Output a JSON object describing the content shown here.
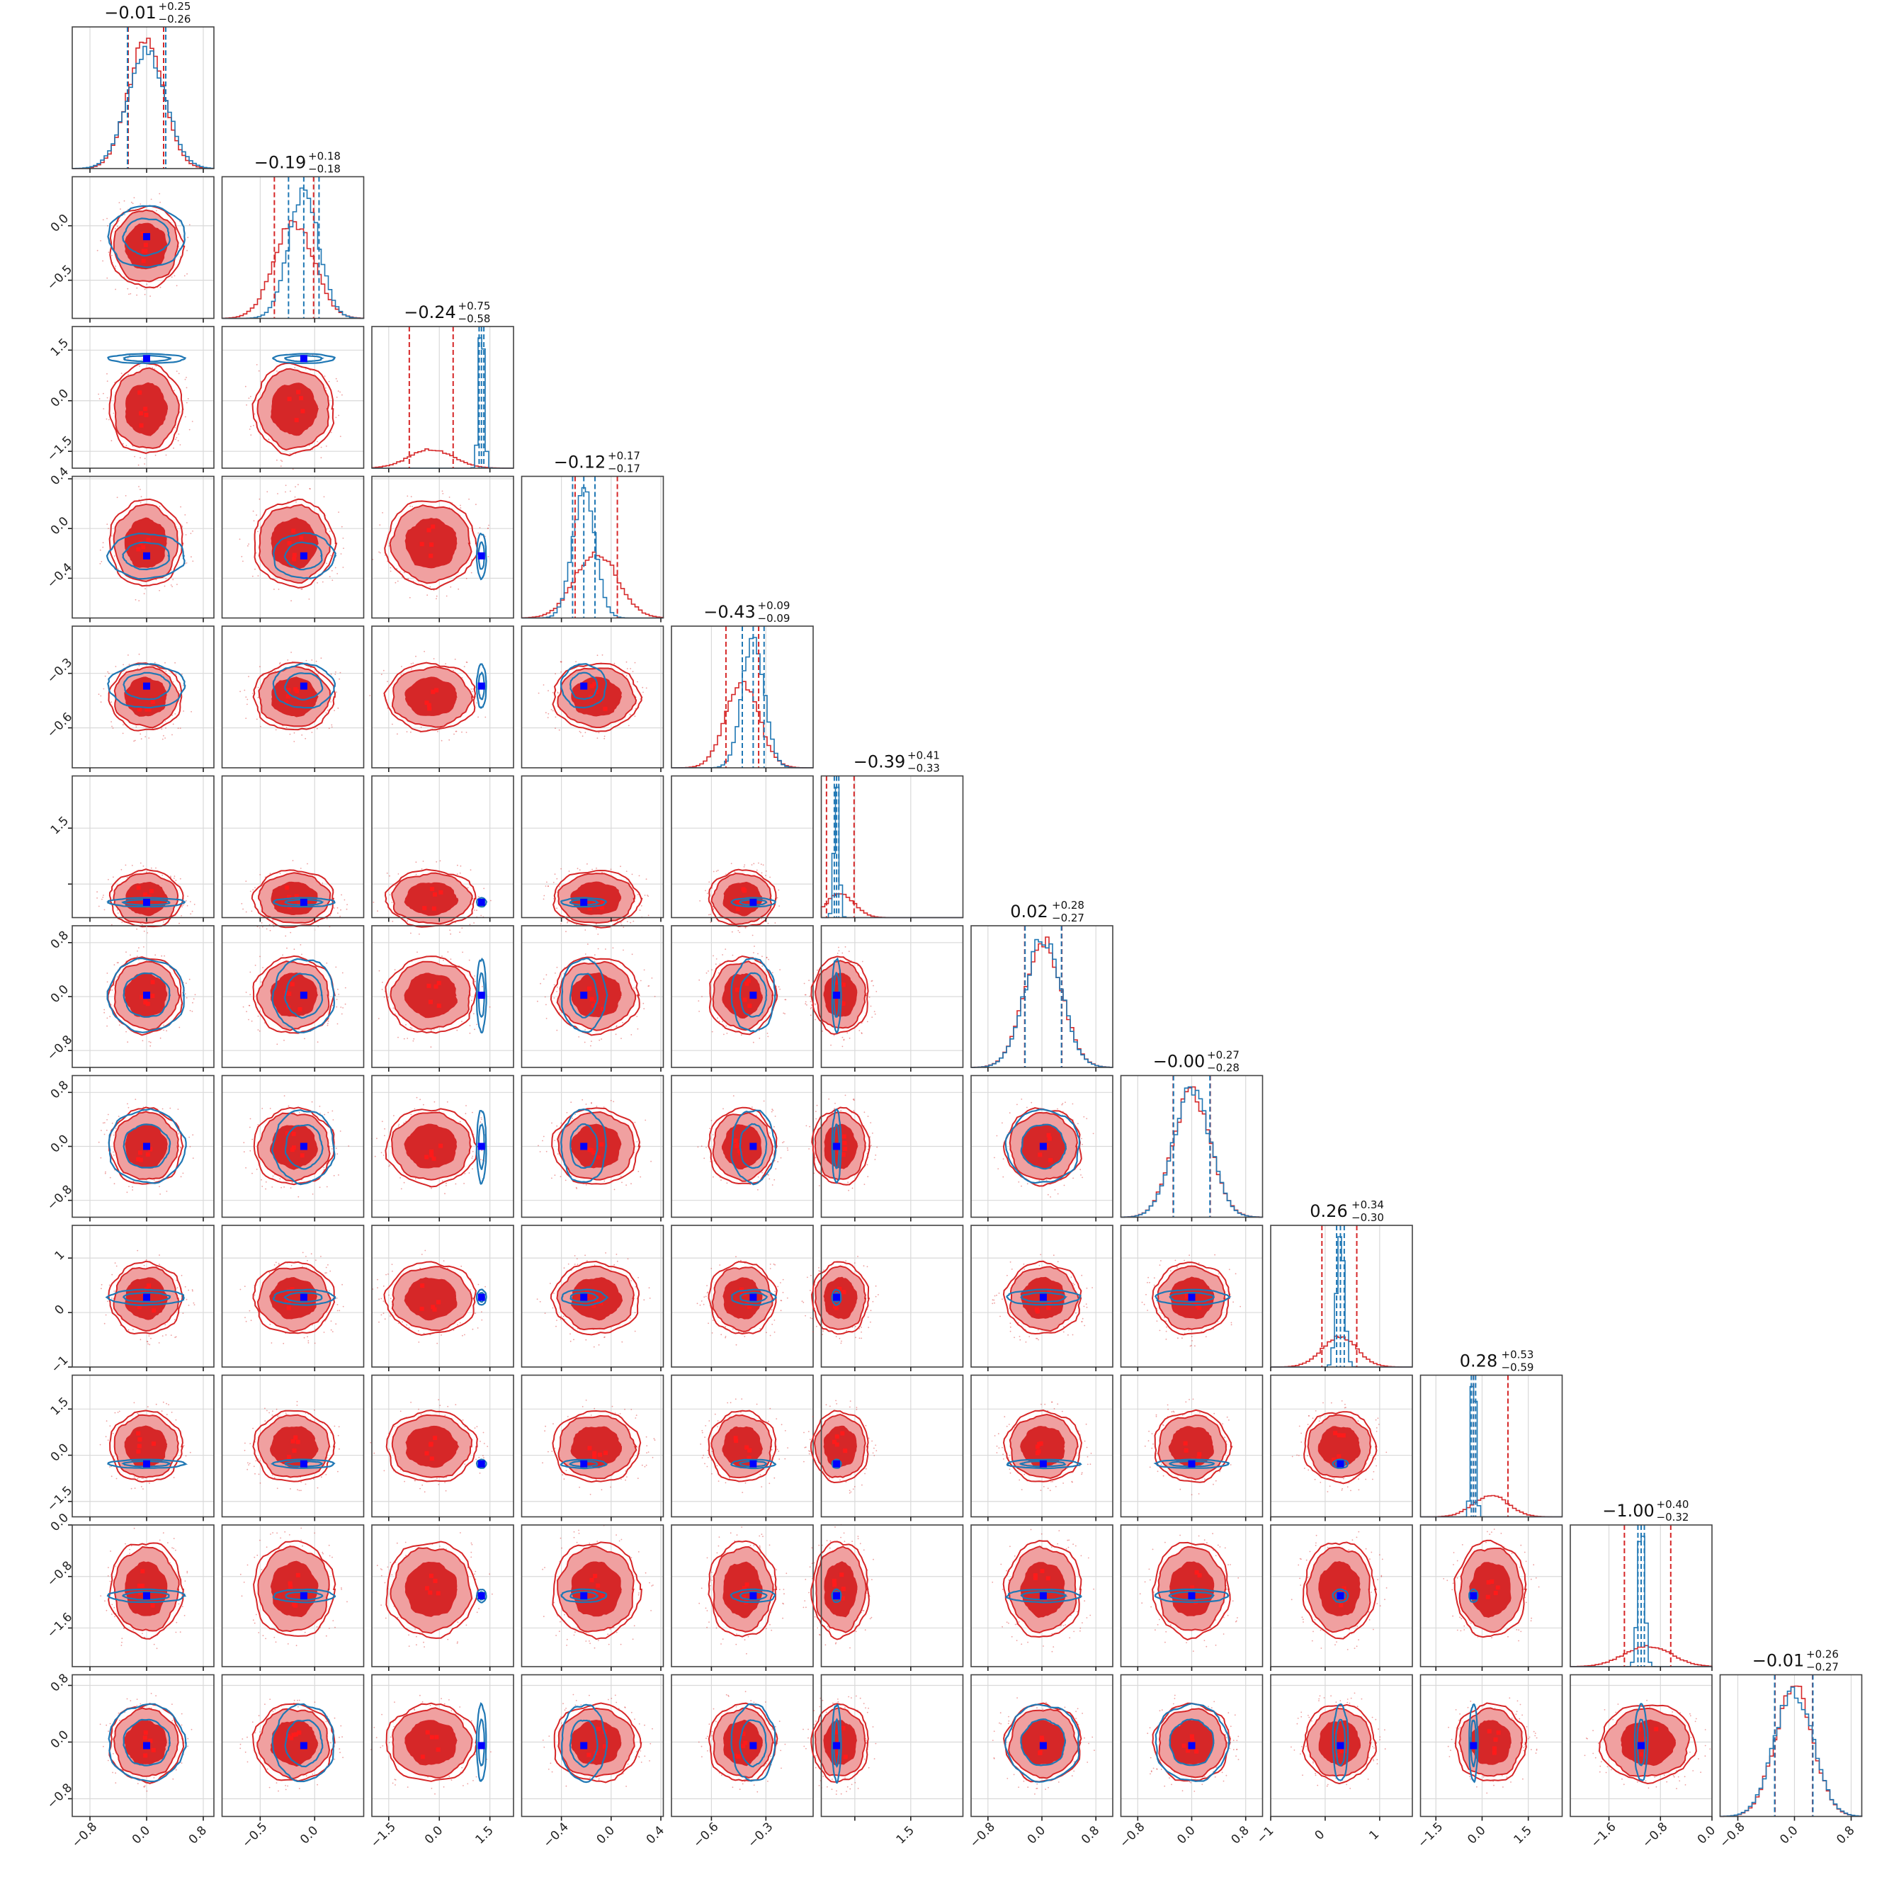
{
  "chart_data": {
    "type": "corner",
    "n_params": 12,
    "colors": {
      "series_a": "#d62728",
      "series_a_fill": "#f0a0a0",
      "series_a_core": "#d62728",
      "series_b": "#1f77b4",
      "truth": "#0000ff"
    },
    "series": [
      {
        "color": "#d62728",
        "role": "broad posterior"
      },
      {
        "color": "#1f77b4",
        "role": "narrow posterior"
      }
    ],
    "params": [
      {
        "ticks": [
          -0.8,
          0.0,
          0.8
        ],
        "tick_labels": [
          "−0.8",
          "0.0",
          "0.8"
        ],
        "range": [
          -1.05,
          0.95
        ],
        "title_main": "−0.01",
        "title_sup": "+0.25",
        "title_sub": "−0.26",
        "a": {
          "mu": -0.01,
          "sd": 0.25
        },
        "b": {
          "mu": 0.0,
          "sd": 0.27
        },
        "truth": 0.0,
        "red_mark": 0.0
      },
      {
        "ticks": [
          -0.5,
          0.0
        ],
        "tick_labels": [
          "−0.5",
          "0.0"
        ],
        "range": [
          -0.85,
          0.45
        ],
        "title_main": "−0.19",
        "title_sup": "+0.18",
        "title_sub": "−0.18",
        "a": {
          "mu": -0.19,
          "sd": 0.18
        },
        "b": {
          "mu": -0.1,
          "sd": 0.14
        },
        "truth": -0.1,
        "red_mark": -0.1
      },
      {
        "ticks": [
          -1.5,
          0.0,
          1.5
        ],
        "tick_labels": [
          "−1.5",
          "0.0",
          "1.5"
        ],
        "range": [
          -2.0,
          2.2
        ],
        "title_main": "−0.24",
        "title_sup": "+0.75",
        "title_sub": "−0.58",
        "a": {
          "mu": -0.24,
          "sd": 0.65
        },
        "b": {
          "mu": 1.25,
          "sd": 0.07
        },
        "truth": 1.25,
        "red_mark": 0.5
      },
      {
        "ticks": [
          -0.4,
          0.0,
          0.4
        ],
        "tick_labels": [
          "−0.4",
          "0.0",
          "0.4"
        ],
        "range": [
          -0.72,
          0.42
        ],
        "title_main": "−0.12",
        "title_sup": "+0.17",
        "title_sub": "−0.17",
        "a": {
          "mu": -0.12,
          "sd": 0.17
        },
        "b": {
          "mu": -0.22,
          "sd": 0.09
        },
        "truth": -0.22,
        "red_mark": -0.1
      },
      {
        "ticks": [
          -0.6,
          -0.3
        ],
        "tick_labels": [
          "−0.6",
          "−0.3"
        ],
        "range": [
          -0.82,
          -0.04
        ],
        "title_main": "−0.43",
        "title_sup": "+0.09",
        "title_sub": "−0.09",
        "a": {
          "mu": -0.43,
          "sd": 0.09
        },
        "b": {
          "mu": -0.37,
          "sd": 0.06
        },
        "truth": -0.37,
        "red_mark": -0.37
      },
      {
        "ticks": [
          -0.0,
          1.5
        ],
        "tick_labels": [
          "",
          "1.5"
        ],
        "range": [
          -0.9,
          2.9
        ],
        "title_main": "−0.39",
        "title_sup": "+0.41",
        "title_sub": "−0.33",
        "a": {
          "mu": -0.39,
          "sd": 0.37
        },
        "b": {
          "mu": -0.49,
          "sd": 0.06
        },
        "truth": -0.49,
        "red_mark": 0.5
      },
      {
        "ticks": [
          -0.8,
          0.0,
          0.8
        ],
        "tick_labels": [
          "−0.8",
          "0.0",
          "0.8"
        ],
        "range": [
          -1.05,
          1.05
        ],
        "title_main": "0.02",
        "title_sup": "+0.28",
        "title_sub": "−0.27",
        "a": {
          "mu": 0.02,
          "sd": 0.275
        },
        "b": {
          "mu": 0.02,
          "sd": 0.27
        },
        "truth": 0.02,
        "red_mark": 0.0
      },
      {
        "ticks": [
          -0.8,
          0.0,
          0.8
        ],
        "tick_labels": [
          "−0.8",
          "0.0",
          "0.8"
        ],
        "range": [
          -1.05,
          1.05
        ],
        "title_main": "−0.00",
        "title_sup": "+0.27",
        "title_sub": "−0.28",
        "a": {
          "mu": 0.0,
          "sd": 0.275
        },
        "b": {
          "mu": 0.0,
          "sd": 0.27
        },
        "truth": 0.0,
        "red_mark": 0.0
      },
      {
        "ticks": [
          -1,
          0,
          1
        ],
        "tick_labels": [
          "−1",
          "0",
          "1"
        ],
        "range": [
          -1.0,
          1.6
        ],
        "title_main": "0.26",
        "title_sup": "+0.34",
        "title_sub": "−0.30",
        "a": {
          "mu": 0.26,
          "sd": 0.32
        },
        "b": {
          "mu": 0.28,
          "sd": 0.07
        },
        "truth": 0.28,
        "red_mark": 0.28
      },
      {
        "ticks": [
          -1.5,
          0.0,
          1.5
        ],
        "tick_labels": [
          "−1.5",
          "0.0",
          "1.5"
        ],
        "range": [
          -2.0,
          2.6
        ],
        "title_main": "0.28",
        "title_sup": "+0.53",
        "title_sub": "−0.59",
        "a": {
          "mu": 0.28,
          "sd": 0.56
        },
        "b": {
          "mu": -0.28,
          "sd": 0.07
        },
        "truth": -0.28,
        "red_mark": 0.3
      },
      {
        "ticks": [
          -1.6,
          -0.8,
          0.0
        ],
        "tick_labels": [
          "−1.6",
          "−0.8",
          "0.0"
        ],
        "range": [
          -2.2,
          0.0
        ],
        "title_main": "−1.00",
        "title_sup": "+0.40",
        "title_sub": "−0.32",
        "a": {
          "mu": -1.0,
          "sd": 0.36
        },
        "b": {
          "mu": -1.1,
          "sd": 0.05
        },
        "truth": -1.1,
        "red_mark": -1.0
      },
      {
        "ticks": [
          -0.8,
          0.0,
          0.8
        ],
        "tick_labels": [
          "−0.8",
          "0.0",
          "0.8"
        ],
        "range": [
          -1.05,
          0.95
        ],
        "title_main": "−0.01",
        "title_sup": "+0.26",
        "title_sub": "−0.27",
        "a": {
          "mu": -0.01,
          "sd": 0.265
        },
        "b": {
          "mu": -0.01,
          "sd": 0.27
        },
        "truth": -0.05,
        "red_mark": 0.0
      }
    ]
  }
}
